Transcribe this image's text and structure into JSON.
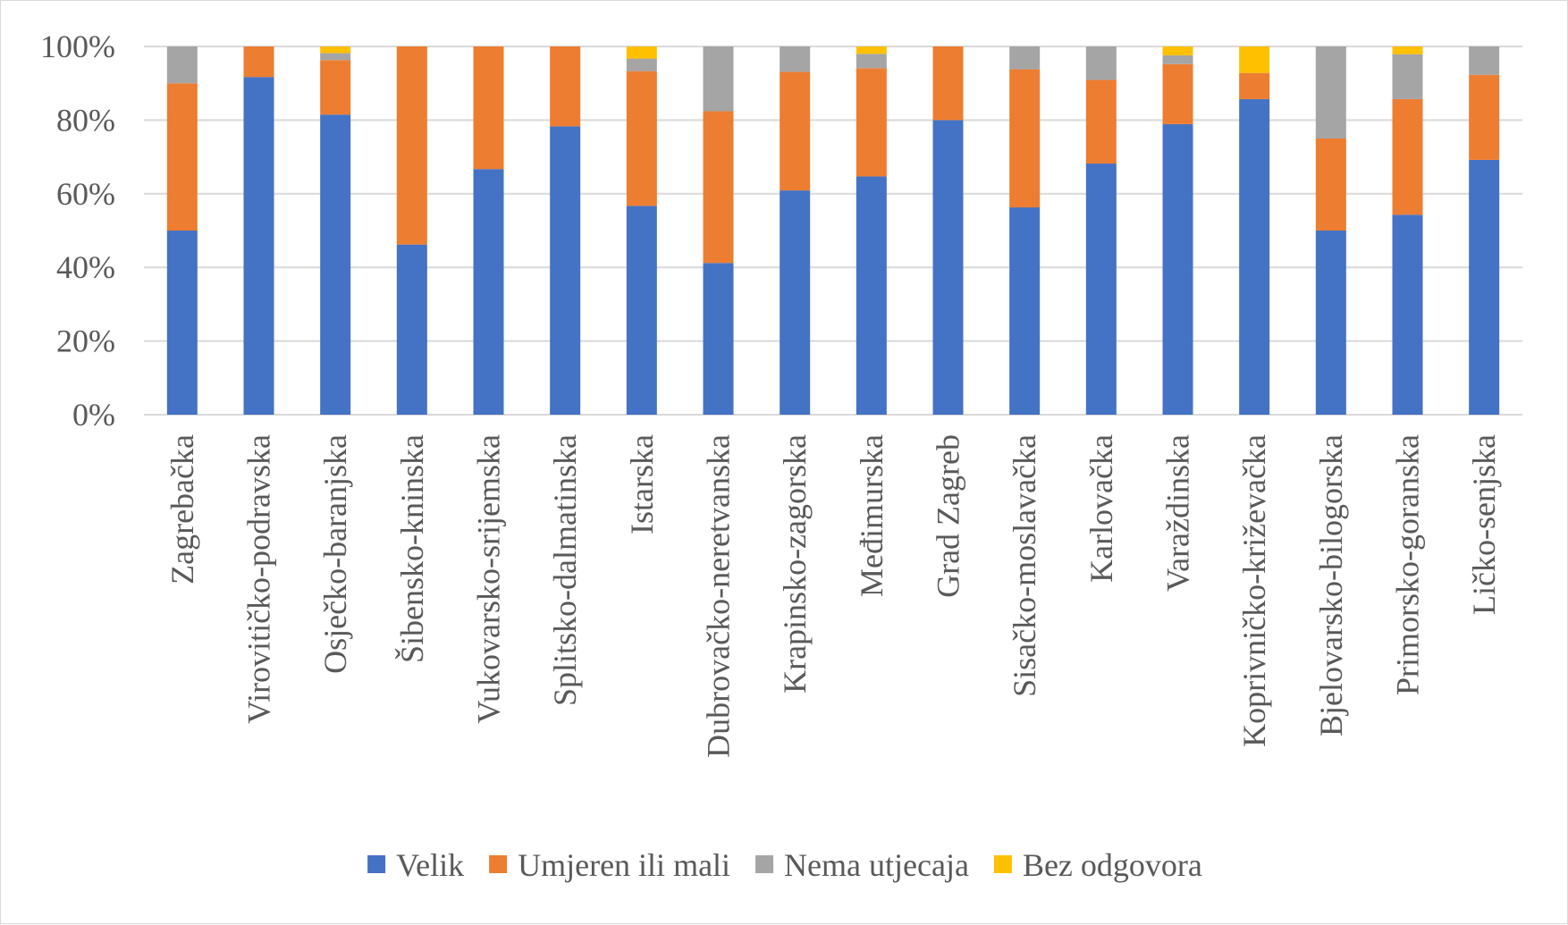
{
  "chart_data": {
    "type": "bar",
    "stacked": true,
    "percent_stacked": true,
    "title": "",
    "xlabel": "",
    "ylabel": "",
    "ylim": [
      0,
      100
    ],
    "y_ticks": [
      "0%",
      "20%",
      "40%",
      "60%",
      "80%",
      "100%"
    ],
    "grid": true,
    "legend_position": "bottom",
    "categories": [
      "Zagrebačka",
      "Virovitičko-podravska",
      "Osječko-baranjska",
      "Šibensko-kninska",
      "Vukovarsko-srijemska",
      "Splitsko-dalmatinska",
      "Istarska",
      "Dubrovačko-neretvanska",
      "Krapinsko-zagorska",
      "Međimurska",
      "Grad Zagreb",
      "Sisačko-moslavačka",
      "Karlovačka",
      "Varaždinska",
      "Koprivničko-križevačka",
      "Bjelovarsko-bilogorska",
      "Primorsko-goranska",
      "Ličko-senjska"
    ],
    "series": [
      {
        "name": "Velik",
        "color": "#4472C4",
        "values": [
          50,
          91.7,
          81.5,
          46.2,
          66.7,
          78.3,
          56.7,
          41.2,
          60.9,
          64.7,
          80,
          56.3,
          68.2,
          78.9,
          85.7,
          50,
          54.3,
          69.2
        ]
      },
      {
        "name": "Umjeren ili mali",
        "color": "#ED7D31",
        "values": [
          40,
          8.3,
          14.8,
          53.8,
          33.3,
          21.7,
          36.6,
          41.2,
          32.2,
          29.4,
          20,
          37.5,
          22.7,
          16.3,
          7.1,
          25,
          31.4,
          23.1
        ]
      },
      {
        "name": "Nema utjecaja",
        "color": "#A5A5A5",
        "values": [
          10,
          0,
          1.9,
          0,
          0,
          0,
          3.4,
          17.6,
          6.9,
          3.9,
          0,
          6.2,
          9.1,
          2.4,
          0,
          25,
          12.2,
          7.7
        ]
      },
      {
        "name": "Bez odgovora",
        "color": "#FFC000",
        "values": [
          0,
          0,
          1.8,
          0,
          0,
          0,
          3.3,
          0,
          0,
          2,
          0,
          0,
          0,
          2.4,
          7.2,
          0,
          2.1,
          0
        ]
      }
    ]
  }
}
